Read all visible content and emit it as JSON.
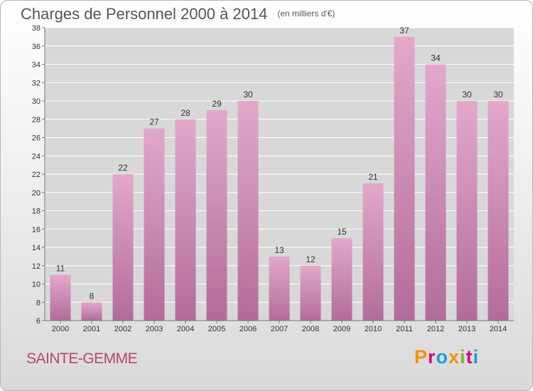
{
  "header": {
    "title": "Charges de Personnel 2000 à 2014",
    "subtitle": "(en milliers d'€)"
  },
  "footer": {
    "place": "SAINTE-GEMME",
    "logo": "Proxiti",
    "logo_colors": [
      "#f29400",
      "#e2007a",
      "#1d9fd8",
      "#f29400",
      "#7cb82f",
      "#e2007a",
      "#1d9fd8"
    ]
  },
  "colors": {
    "bar_top": "#e3a8cb",
    "bar_bottom": "#b36c9a",
    "grid": "#ffffff",
    "place_text": "#b5486d"
  },
  "chart_data": {
    "type": "bar",
    "categories": [
      "2000",
      "2001",
      "2002",
      "2003",
      "2004",
      "2005",
      "2006",
      "2007",
      "2008",
      "2009",
      "2010",
      "2011",
      "2012",
      "2013",
      "2014"
    ],
    "values": [
      11,
      8,
      22,
      27,
      28,
      29,
      30,
      13,
      12,
      15,
      21,
      37,
      34,
      30,
      30
    ],
    "title": "Charges de Personnel 2000 à 2014",
    "subtitle": "(en milliers d'€)",
    "ylim": [
      6,
      38
    ],
    "yticks": [
      6,
      8,
      10,
      12,
      14,
      16,
      18,
      20,
      22,
      24,
      26,
      28,
      30,
      32,
      34,
      36,
      38
    ],
    "grid": true,
    "legend": "none"
  }
}
